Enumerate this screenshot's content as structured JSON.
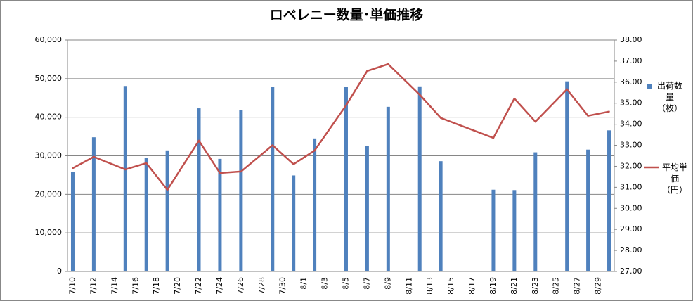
{
  "chart_data": {
    "type": "bar_line",
    "title": "ロベレニー数量･単価推移",
    "categories": [
      "7/10",
      null,
      "7/12",
      null,
      "7/14",
      null,
      "7/16",
      null,
      "7/18",
      null,
      "7/20",
      null,
      "7/22",
      null,
      "7/24",
      null,
      "7/26",
      null,
      "7/28",
      null,
      "7/30",
      null,
      "8/1",
      null,
      "8/3",
      null,
      "8/5",
      null,
      "8/7",
      null,
      "8/9",
      null,
      "8/11",
      null,
      "8/13",
      null,
      "8/15",
      null,
      "8/17",
      null,
      "8/19",
      null,
      "8/21",
      null,
      "8/23",
      null,
      "8/25",
      null,
      "8/27",
      null,
      "8/29",
      null
    ],
    "series": [
      {
        "name": "出荷数量（枚）",
        "type": "bar",
        "color": "#4f81bd",
        "values": [
          25800,
          null,
          34800,
          null,
          null,
          48100,
          null,
          29400,
          null,
          31400,
          null,
          null,
          42300,
          null,
          29200,
          null,
          41800,
          null,
          null,
          47800,
          null,
          24900,
          null,
          34500,
          null,
          null,
          47800,
          null,
          32600,
          null,
          42700,
          null,
          null,
          48000,
          null,
          28600,
          null,
          null,
          null,
          null,
          21200,
          null,
          21100,
          null,
          30900,
          null,
          null,
          49300,
          null,
          31600,
          null,
          36600
        ]
      },
      {
        "name": "平均単価（円）",
        "type": "line",
        "axis": "y2",
        "color": "#c0504d",
        "values": [
          31.91,
          null,
          32.45,
          null,
          null,
          31.85,
          null,
          32.15,
          null,
          30.88,
          null,
          null,
          33.22,
          null,
          31.68,
          null,
          31.75,
          null,
          null,
          33.0,
          null,
          32.1,
          null,
          32.75,
          null,
          null,
          34.9,
          null,
          36.53,
          null,
          36.86,
          null,
          null,
          35.4,
          null,
          34.3,
          null,
          null,
          null,
          null,
          33.35,
          null,
          35.22,
          null,
          34.12,
          null,
          null,
          35.66,
          null,
          34.4,
          null,
          34.6
        ]
      }
    ],
    "ylim": [
      0,
      60000
    ],
    "yticks": [
      0,
      {
        "value": 10000,
        "label": "10,000"
      },
      {
        "value": 20000,
        "label": "20,000"
      },
      {
        "value": 30000,
        "label": "30,000"
      },
      {
        "value": 40000,
        "label": "40,000"
      },
      {
        "value": 50000,
        "label": "50,000"
      },
      {
        "value": 60000,
        "label": "60,000"
      }
    ],
    "y2lim": [
      27,
      38
    ],
    "y2ticks": [
      {
        "value": 27,
        "label": "27.00"
      },
      {
        "value": 28,
        "label": "28.00"
      },
      {
        "value": 29,
        "label": "29.00"
      },
      {
        "value": 30,
        "label": "30.00"
      },
      {
        "value": 31,
        "label": "31.00"
      },
      {
        "value": 32,
        "label": "32.00"
      },
      {
        "value": 33,
        "label": "33.00"
      },
      {
        "value": 34,
        "label": "34.00"
      },
      {
        "value": 35,
        "label": "35.00"
      },
      {
        "value": 36,
        "label": "36.00"
      },
      {
        "value": 37,
        "label": "37.00"
      },
      {
        "value": 38,
        "label": "38.00"
      }
    ],
    "grid": true,
    "legend": "right"
  }
}
